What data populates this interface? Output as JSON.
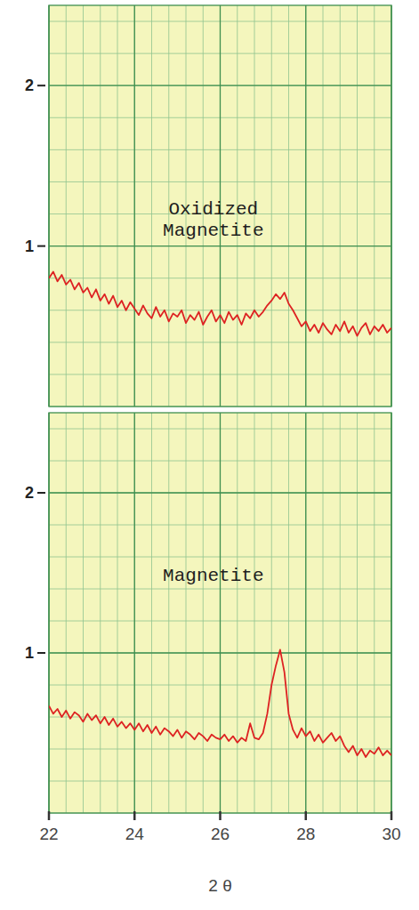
{
  "chart_data": [
    {
      "type": "line",
      "title": "Oxidized Magnetite",
      "color": "#dd2222",
      "x": [
        22.0,
        22.1,
        22.2,
        22.3,
        22.4,
        22.5,
        22.6,
        22.7,
        22.8,
        22.9,
        23.0,
        23.1,
        23.2,
        23.3,
        23.4,
        23.5,
        23.6,
        23.7,
        23.8,
        23.9,
        24.0,
        24.1,
        24.2,
        24.3,
        24.4,
        24.5,
        24.6,
        24.7,
        24.8,
        24.9,
        25.0,
        25.1,
        25.2,
        25.3,
        25.4,
        25.5,
        25.6,
        25.7,
        25.8,
        25.9,
        26.0,
        26.1,
        26.2,
        26.3,
        26.4,
        26.5,
        26.6,
        26.7,
        26.8,
        26.9,
        27.0,
        27.1,
        27.2,
        27.3,
        27.4,
        27.5,
        27.6,
        27.7,
        27.8,
        27.9,
        28.0,
        28.1,
        28.2,
        28.3,
        28.4,
        28.5,
        28.6,
        28.7,
        28.8,
        28.9,
        29.0,
        29.1,
        29.2,
        29.3,
        29.4,
        29.5,
        29.6,
        29.7,
        29.8,
        29.9,
        30.0
      ],
      "values": [
        0.8,
        0.84,
        0.78,
        0.82,
        0.76,
        0.79,
        0.73,
        0.77,
        0.71,
        0.74,
        0.68,
        0.73,
        0.66,
        0.7,
        0.64,
        0.69,
        0.62,
        0.66,
        0.6,
        0.65,
        0.61,
        0.57,
        0.63,
        0.58,
        0.55,
        0.62,
        0.56,
        0.6,
        0.53,
        0.58,
        0.56,
        0.6,
        0.52,
        0.57,
        0.54,
        0.59,
        0.51,
        0.56,
        0.6,
        0.53,
        0.57,
        0.52,
        0.59,
        0.54,
        0.57,
        0.51,
        0.58,
        0.55,
        0.6,
        0.56,
        0.59,
        0.63,
        0.66,
        0.7,
        0.67,
        0.71,
        0.64,
        0.6,
        0.55,
        0.5,
        0.53,
        0.47,
        0.51,
        0.46,
        0.52,
        0.48,
        0.45,
        0.51,
        0.47,
        0.53,
        0.46,
        0.5,
        0.44,
        0.49,
        0.52,
        0.45,
        0.5,
        0.47,
        0.51,
        0.46,
        0.49
      ],
      "xlim": [
        22,
        30
      ],
      "xticks": [
        22,
        24,
        26,
        28,
        30
      ],
      "ylim": [
        0,
        2.5
      ],
      "yticks": [
        1,
        2
      ],
      "grid": true,
      "tick_labels": "y"
    },
    {
      "type": "line",
      "title": "Magnetite",
      "color": "#dd2222",
      "x_label": "2 θ",
      "x": [
        22.0,
        22.1,
        22.2,
        22.3,
        22.4,
        22.5,
        22.6,
        22.7,
        22.8,
        22.9,
        23.0,
        23.1,
        23.2,
        23.3,
        23.4,
        23.5,
        23.6,
        23.7,
        23.8,
        23.9,
        24.0,
        24.1,
        24.2,
        24.3,
        24.4,
        24.5,
        24.6,
        24.7,
        24.8,
        24.9,
        25.0,
        25.1,
        25.2,
        25.3,
        25.4,
        25.5,
        25.6,
        25.7,
        25.8,
        25.9,
        26.0,
        26.1,
        26.2,
        26.3,
        26.4,
        26.5,
        26.6,
        26.7,
        26.8,
        26.9,
        27.0,
        27.1,
        27.2,
        27.3,
        27.4,
        27.5,
        27.6,
        27.7,
        27.8,
        27.9,
        28.0,
        28.1,
        28.2,
        28.3,
        28.4,
        28.5,
        28.6,
        28.7,
        28.8,
        28.9,
        29.0,
        29.1,
        29.2,
        29.3,
        29.4,
        29.5,
        29.6,
        29.7,
        29.8,
        29.9,
        30.0
      ],
      "values": [
        0.67,
        0.62,
        0.65,
        0.6,
        0.64,
        0.59,
        0.63,
        0.61,
        0.57,
        0.62,
        0.58,
        0.61,
        0.56,
        0.6,
        0.55,
        0.59,
        0.54,
        0.57,
        0.53,
        0.56,
        0.52,
        0.56,
        0.51,
        0.55,
        0.5,
        0.54,
        0.49,
        0.53,
        0.51,
        0.48,
        0.52,
        0.47,
        0.51,
        0.49,
        0.46,
        0.5,
        0.48,
        0.45,
        0.49,
        0.47,
        0.46,
        0.49,
        0.45,
        0.48,
        0.44,
        0.47,
        0.45,
        0.56,
        0.47,
        0.46,
        0.5,
        0.62,
        0.8,
        0.92,
        1.02,
        0.88,
        0.62,
        0.52,
        0.47,
        0.53,
        0.48,
        0.51,
        0.45,
        0.49,
        0.44,
        0.47,
        0.5,
        0.45,
        0.48,
        0.42,
        0.38,
        0.42,
        0.36,
        0.4,
        0.35,
        0.39,
        0.37,
        0.41,
        0.36,
        0.39,
        0.36
      ],
      "xlim": [
        22,
        30
      ],
      "xticks": [
        22,
        24,
        26,
        28,
        30
      ],
      "ylim": [
        0,
        2.5
      ],
      "yticks": [
        1,
        2
      ],
      "grid": true
    }
  ]
}
